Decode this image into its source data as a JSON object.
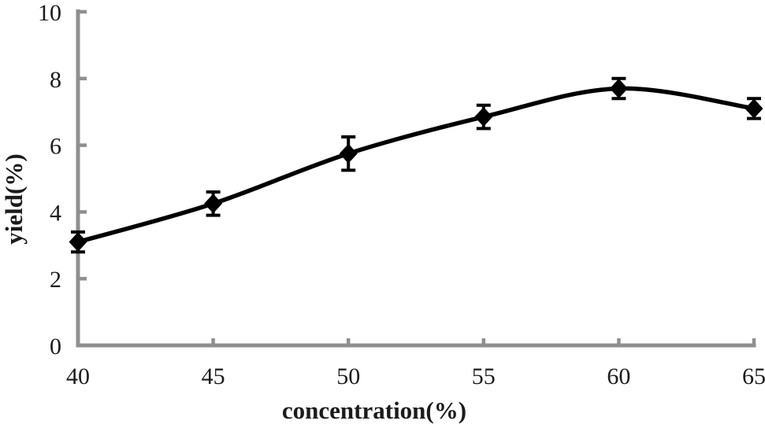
{
  "chart_data": {
    "type": "line",
    "title": "",
    "xlabel": "concentration(%)",
    "ylabel": "yield(%)",
    "x": [
      40,
      45,
      50,
      55,
      60,
      65
    ],
    "series": [
      {
        "name": "yield",
        "values": [
          3.1,
          4.25,
          5.75,
          6.85,
          7.7,
          7.1
        ],
        "errors": [
          0.3,
          0.35,
          0.5,
          0.35,
          0.3,
          0.3
        ],
        "marker": "diamond",
        "color": "#000000",
        "line_style": "smooth"
      }
    ],
    "xlim": [
      40,
      65
    ],
    "ylim": [
      0,
      10
    ],
    "x_ticks": [
      40,
      45,
      50,
      55,
      60,
      65
    ],
    "y_ticks": [
      0,
      2,
      4,
      6,
      8,
      10
    ],
    "grid": false,
    "legend": "none",
    "axis_color": "#8f8f8f",
    "text_color": "#1b1b1b",
    "background_color": "#ffffff"
  }
}
